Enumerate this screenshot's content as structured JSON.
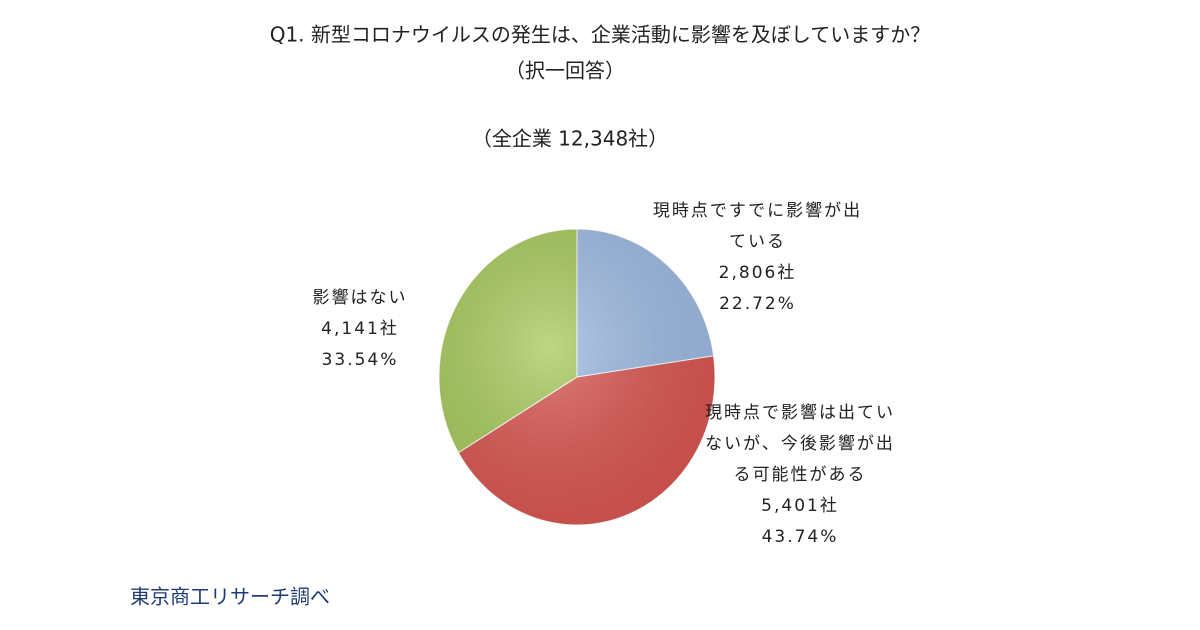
{
  "chart_data": {
    "type": "pie",
    "title": "Q1. 新型コロナウイルスの発生は、企業活動に影響を及ぼしていますか？",
    "title_note": "（択一回答）",
    "subtitle": "（全企業 12,348社）",
    "categories": [
      "現時点ですでに影響が出ている",
      "現時点で影響は出ていないが、今後影響が出る可能性がある",
      "影響はない"
    ],
    "values": [
      22.72,
      43.74,
      33.54
    ],
    "value_labels": [
      "22.72%",
      "43.74%",
      "33.54%"
    ],
    "counts": [
      2806,
      5401,
      4141
    ],
    "count_labels": [
      "2,806社",
      "5,401社",
      "4,141社"
    ],
    "colors": [
      "#9dbae2",
      "#d95550",
      "#a7c95c"
    ],
    "source": "東京商工リサーチ調べ"
  }
}
